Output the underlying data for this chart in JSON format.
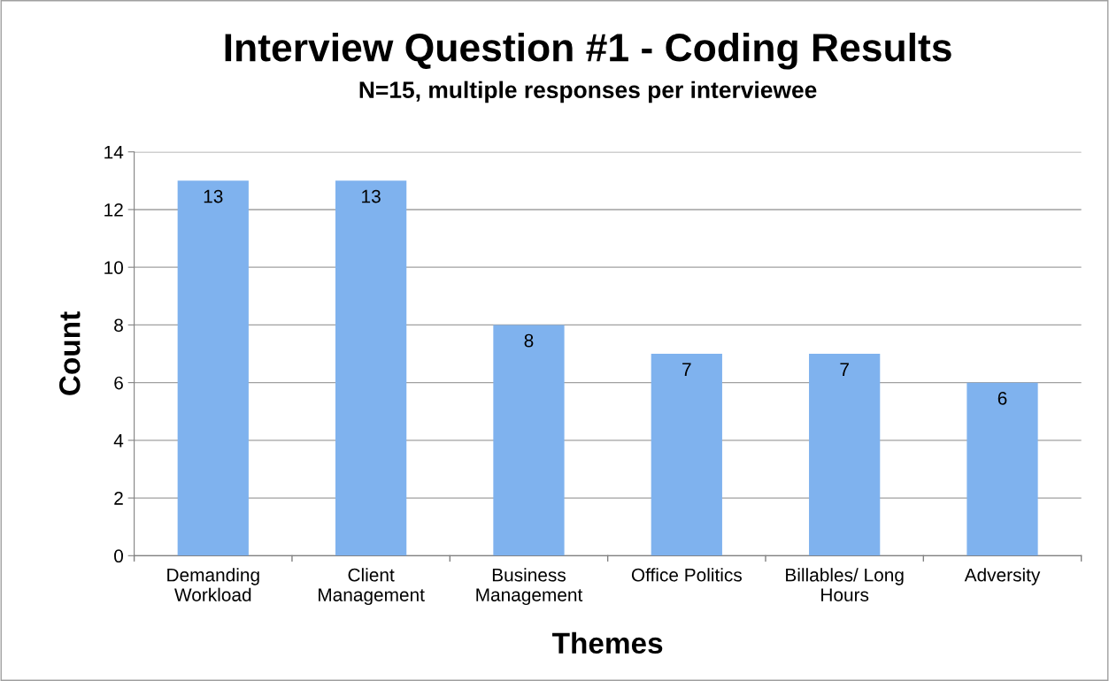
{
  "chart_data": {
    "type": "bar",
    "title": "Interview Question #1 - Coding Results",
    "subtitle": "N=15, multiple responses per interviewee",
    "xlabel": "Themes",
    "ylabel": "Count",
    "categories": [
      "Demanding\nWorkload",
      "Client\nManagement",
      "Business\nManagement",
      "Office Politics",
      "Billables/ Long\nHours",
      "Adversity"
    ],
    "values": [
      13,
      13,
      8,
      7,
      7,
      6
    ],
    "color": "#7fb2ee",
    "ylim": [
      0,
      14
    ],
    "yticks": [
      0,
      2,
      4,
      6,
      8,
      10,
      12,
      14
    ],
    "grid": "y",
    "data_labels": true
  }
}
